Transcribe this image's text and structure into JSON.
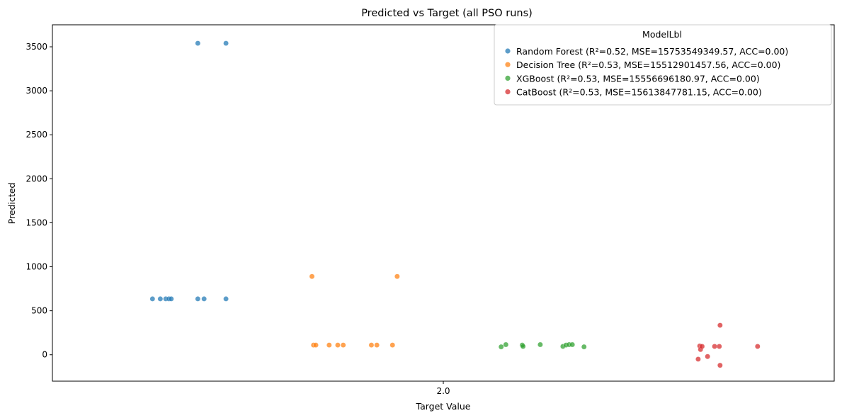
{
  "chart_data": {
    "type": "scatter",
    "title": "Predicted vs Target (all PSO runs)",
    "xlabel": "Target Value",
    "ylabel": "Predicted",
    "x_categories": [
      "2.0"
    ],
    "ylim": [
      -300,
      3750
    ],
    "yticks": [
      0,
      500,
      1000,
      1500,
      2000,
      2500,
      3000,
      3500
    ],
    "grid": false,
    "legend": {
      "title": "ModelLbl",
      "placement": "top-right"
    },
    "series": [
      {
        "name": "Random Forest (R²=0.52, MSE=15753549349.57, ACC=0.00)",
        "color": "#1f77b4",
        "points": [
          {
            "x": -0.372,
            "y": 635
          },
          {
            "x": -0.362,
            "y": 635
          },
          {
            "x": -0.355,
            "y": 635
          },
          {
            "x": -0.351,
            "y": 635
          },
          {
            "x": -0.348,
            "y": 635
          },
          {
            "x": -0.314,
            "y": 3540
          },
          {
            "x": -0.314,
            "y": 635
          },
          {
            "x": -0.306,
            "y": 635
          },
          {
            "x": -0.278,
            "y": 3540
          },
          {
            "x": -0.278,
            "y": 635
          }
        ]
      },
      {
        "name": "Decision Tree (R²=0.53, MSE=15512901457.56, ACC=0.00)",
        "color": "#ff7f0e",
        "points": [
          {
            "x": -0.168,
            "y": 890
          },
          {
            "x": -0.166,
            "y": 110
          },
          {
            "x": -0.163,
            "y": 110
          },
          {
            "x": -0.146,
            "y": 110
          },
          {
            "x": -0.135,
            "y": 110
          },
          {
            "x": -0.128,
            "y": 110
          },
          {
            "x": -0.092,
            "y": 110
          },
          {
            "x": -0.085,
            "y": 110
          },
          {
            "x": -0.065,
            "y": 110
          },
          {
            "x": -0.059,
            "y": 890
          }
        ]
      },
      {
        "name": "XGBoost (R²=0.53, MSE=15556696180.97, ACC=0.00)",
        "color": "#2ca02c",
        "points": [
          {
            "x": 0.074,
            "y": 90
          },
          {
            "x": 0.08,
            "y": 115
          },
          {
            "x": 0.101,
            "y": 110
          },
          {
            "x": 0.102,
            "y": 95
          },
          {
            "x": 0.124,
            "y": 115
          },
          {
            "x": 0.153,
            "y": 95
          },
          {
            "x": 0.157,
            "y": 110
          },
          {
            "x": 0.161,
            "y": 115
          },
          {
            "x": 0.165,
            "y": 115
          },
          {
            "x": 0.18,
            "y": 90
          }
        ]
      },
      {
        "name": "CatBoost (R²=0.53, MSE=15613847781.15, ACC=0.00)",
        "color": "#d62728",
        "points": [
          {
            "x": 0.326,
            "y": -50
          },
          {
            "x": 0.328,
            "y": 100
          },
          {
            "x": 0.329,
            "y": 60
          },
          {
            "x": 0.331,
            "y": 95
          },
          {
            "x": 0.338,
            "y": -20
          },
          {
            "x": 0.347,
            "y": 95
          },
          {
            "x": 0.353,
            "y": 95
          },
          {
            "x": 0.354,
            "y": 335
          },
          {
            "x": 0.354,
            "y": -120
          },
          {
            "x": 0.402,
            "y": 95
          }
        ]
      }
    ]
  }
}
